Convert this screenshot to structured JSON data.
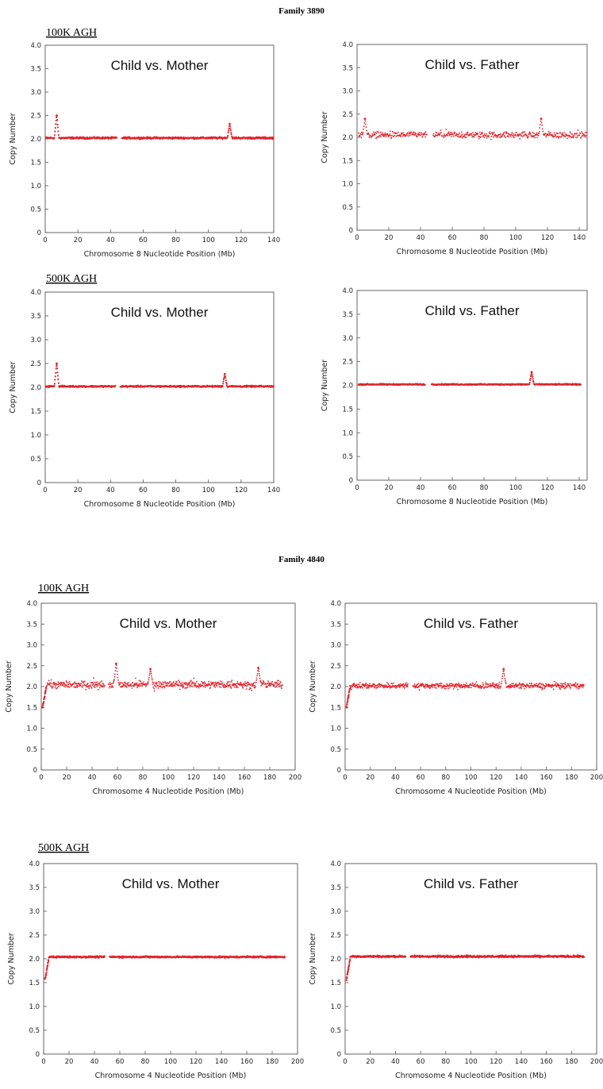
{
  "colors": {
    "series": "#e3242b",
    "axis": "#555555",
    "background": "#ffffff"
  },
  "families": [
    {
      "title": "Family 3890",
      "arrays": [
        {
          "label": "100K AGH"
        },
        {
          "label": "500K AGH"
        }
      ]
    },
    {
      "title": "Family 4840",
      "arrays": [
        {
          "label": "100K AGH"
        },
        {
          "label": "500K AGH"
        }
      ]
    }
  ],
  "chart_data": [
    {
      "type": "scatter",
      "title": "Child vs. Mother",
      "xlabel": "Chromosome 8 Nucleotide Position (Mb)",
      "ylabel": "Copy Number",
      "xlim": [
        0,
        140
      ],
      "ylim": [
        0,
        4.0
      ],
      "xticks": [
        0,
        20,
        40,
        60,
        80,
        100,
        120,
        140
      ],
      "yticks": [
        0,
        0.5,
        1.0,
        1.5,
        2.0,
        2.5,
        3.0,
        3.5,
        4.0
      ],
      "ytick_labels": [
        "0",
        "0.5",
        "1.0",
        "1.5",
        "2.0",
        "2.5",
        "3.0",
        "3.5",
        "4.0"
      ],
      "grid": false,
      "series": [
        {
          "segments": [
            {
              "x0": 0.5,
              "x1": 44,
              "y": 2.02
            },
            {
              "x0": 47,
              "x1": 140,
              "y": 2.02
            }
          ],
          "noise": 0.03,
          "peaks": [
            {
              "x": 7,
              "y": 2.5
            },
            {
              "x": 113,
              "y": 2.32
            }
          ]
        }
      ]
    },
    {
      "type": "scatter",
      "title": "Child vs. Father",
      "xlabel": "Chromosome 8 Nucleotide Position (Mb)",
      "ylabel": "Copy Number",
      "xlim": [
        0,
        145
      ],
      "ylim": [
        0,
        4.0
      ],
      "xticks": [
        0,
        20,
        40,
        60,
        80,
        100,
        120,
        140
      ],
      "yticks": [
        0,
        0.5,
        1.0,
        1.5,
        2.0,
        2.5,
        3.0,
        3.5,
        4.0
      ],
      "ytick_labels": [
        "0",
        "0.5",
        "1.0",
        "1.5",
        "2.0",
        "2.5",
        "3.0",
        "3.5",
        "4.0"
      ],
      "grid": false,
      "series": [
        {
          "segments": [
            {
              "x0": 1,
              "x1": 44,
              "y": 2.05
            },
            {
              "x0": 48,
              "x1": 145,
              "y": 2.05
            }
          ],
          "noise": 0.09,
          "peaks": [
            {
              "x": 5,
              "y": 2.4
            },
            {
              "x": 116,
              "y": 2.4
            }
          ]
        }
      ]
    },
    {
      "type": "scatter",
      "title": "Child vs. Mother",
      "xlabel": "Chromosome 8 Nucleotide Position (Mb)",
      "ylabel": "Copy Number",
      "xlim": [
        0,
        140
      ],
      "ylim": [
        0,
        4.0
      ],
      "xticks": [
        0,
        20,
        40,
        60,
        80,
        100,
        120,
        140
      ],
      "yticks": [
        0,
        0.5,
        1.0,
        1.5,
        2.0,
        2.5,
        3.0,
        3.5,
        4.0
      ],
      "ytick_labels": [
        "0",
        "0.5",
        "1.0",
        "1.5",
        "2.0",
        "2.5",
        "3.0",
        "3.5",
        "4.0"
      ],
      "grid": false,
      "series": [
        {
          "segments": [
            {
              "x0": 0.5,
              "x1": 43,
              "y": 2.02
            },
            {
              "x0": 46,
              "x1": 140,
              "y": 2.02
            }
          ],
          "noise": 0.025,
          "peaks": [
            {
              "x": 7,
              "y": 2.5
            },
            {
              "x": 110,
              "y": 2.28
            }
          ]
        }
      ]
    },
    {
      "type": "scatter",
      "title": "Child vs. Father",
      "xlabel": "Chromosome 8 Nucleotide Position (Mb)",
      "ylabel": "Copy Number",
      "xlim": [
        0,
        145
      ],
      "ylim": [
        0,
        4.0
      ],
      "xticks": [
        0,
        20,
        40,
        60,
        80,
        100,
        120,
        140
      ],
      "yticks": [
        0,
        0.5,
        1.0,
        1.5,
        2.0,
        2.5,
        3.0,
        3.5,
        4.0
      ],
      "ytick_labels": [
        "0",
        "0.5",
        "1.0",
        "1.5",
        "2.0",
        "2.5",
        "3.0",
        "3.5",
        "4.0"
      ],
      "grid": false,
      "series": [
        {
          "segments": [
            {
              "x0": 1,
              "x1": 43,
              "y": 2.02
            },
            {
              "x0": 47,
              "x1": 141,
              "y": 2.02
            }
          ],
          "noise": 0.02,
          "peaks": [
            {
              "x": 110,
              "y": 2.28
            }
          ]
        }
      ]
    },
    {
      "type": "scatter",
      "title": "Child vs. Mother",
      "xlabel": "Chromosome 4 Nucleotide Position (Mb)",
      "ylabel": "Copy Number",
      "xlim": [
        0,
        200
      ],
      "ylim": [
        0,
        4.0
      ],
      "xticks": [
        0,
        20,
        40,
        60,
        80,
        100,
        120,
        140,
        160,
        180,
        200
      ],
      "yticks": [
        0,
        0.5,
        1.0,
        1.5,
        2.0,
        2.5,
        3.0,
        3.5,
        4.0
      ],
      "ytick_labels": [
        "0",
        "0.5",
        "1.0",
        "1.5",
        "2.0",
        "2.5",
        "3.0",
        "3.5",
        "4.0"
      ],
      "grid": false,
      "series": [
        {
          "segments": [
            {
              "x0": 4,
              "x1": 50,
              "y": 2.05
            },
            {
              "x0": 53,
              "x1": 190,
              "y": 2.05
            }
          ],
          "noise": 0.12,
          "dip": {
            "x0": 1,
            "x1": 4,
            "y": 1.5
          },
          "peaks": [
            {
              "x": 59,
              "y": 2.55
            },
            {
              "x": 86,
              "y": 2.42
            },
            {
              "x": 171,
              "y": 2.45
            }
          ]
        }
      ]
    },
    {
      "type": "scatter",
      "title": "Child vs. Father",
      "xlabel": "Chromosome 4 Nucleotide Position (Mb)",
      "ylabel": "Copy Number",
      "xlim": [
        0,
        200
      ],
      "ylim": [
        0,
        4.0
      ],
      "xticks": [
        0,
        20,
        40,
        60,
        80,
        100,
        120,
        140,
        160,
        180,
        200
      ],
      "yticks": [
        0,
        0.5,
        1.0,
        1.5,
        2.0,
        2.5,
        3.0,
        3.5,
        4.0
      ],
      "ytick_labels": [
        "0",
        "0.5",
        "1.0",
        "1.5",
        "2.0",
        "2.5",
        "3.0",
        "3.5",
        "4.0"
      ],
      "grid": false,
      "series": [
        {
          "segments": [
            {
              "x0": 4,
              "x1": 50,
              "y": 2.02
            },
            {
              "x0": 54,
              "x1": 190,
              "y": 2.02
            }
          ],
          "noise": 0.09,
          "dip": {
            "x0": 1,
            "x1": 4,
            "y": 1.5
          },
          "peaks": [
            {
              "x": 126,
              "y": 2.42
            }
          ]
        }
      ]
    },
    {
      "type": "scatter",
      "title": "Child vs. Mother",
      "xlabel": "Chromosome 4 Nucleotide Position (Mb)",
      "ylabel": "Copy Number",
      "xlim": [
        0,
        200
      ],
      "ylim": [
        0,
        4.0
      ],
      "xticks": [
        0,
        20,
        40,
        60,
        80,
        100,
        120,
        140,
        160,
        180,
        200
      ],
      "yticks": [
        0,
        0.5,
        1.0,
        1.5,
        2.0,
        2.5,
        3.0,
        3.5,
        4.0
      ],
      "ytick_labels": [
        "0",
        "0.5",
        "1.0",
        "1.5",
        "2.0",
        "2.5",
        "3.0",
        "3.5",
        "4.0"
      ],
      "grid": false,
      "series": [
        {
          "segments": [
            {
              "x0": 4,
              "x1": 48,
              "y": 2.04
            },
            {
              "x0": 52,
              "x1": 190,
              "y": 2.04
            }
          ],
          "noise": 0.025,
          "dip": {
            "x0": 1,
            "x1": 4,
            "y": 1.55
          },
          "peaks": []
        }
      ]
    },
    {
      "type": "scatter",
      "title": "Child vs. Father",
      "xlabel": "Chromosome 4 Nucleotide Position (Mb)",
      "ylabel": "Copy Number",
      "xlim": [
        0,
        200
      ],
      "ylim": [
        0,
        4.0
      ],
      "xticks": [
        0,
        20,
        40,
        60,
        80,
        100,
        120,
        140,
        160,
        180,
        200
      ],
      "yticks": [
        0,
        0.5,
        1.0,
        1.5,
        2.0,
        2.5,
        3.0,
        3.5,
        4.0
      ],
      "ytick_labels": [
        "0",
        "0.5",
        "1.0",
        "1.5",
        "2.0",
        "2.5",
        "3.0",
        "3.5",
        "4.0"
      ],
      "grid": false,
      "series": [
        {
          "segments": [
            {
              "x0": 4,
              "x1": 48,
              "y": 2.05
            },
            {
              "x0": 52,
              "x1": 190,
              "y": 2.05
            }
          ],
          "noise": 0.03,
          "dip": {
            "x0": 1,
            "x1": 4,
            "y": 1.55
          },
          "peaks": []
        }
      ]
    }
  ]
}
